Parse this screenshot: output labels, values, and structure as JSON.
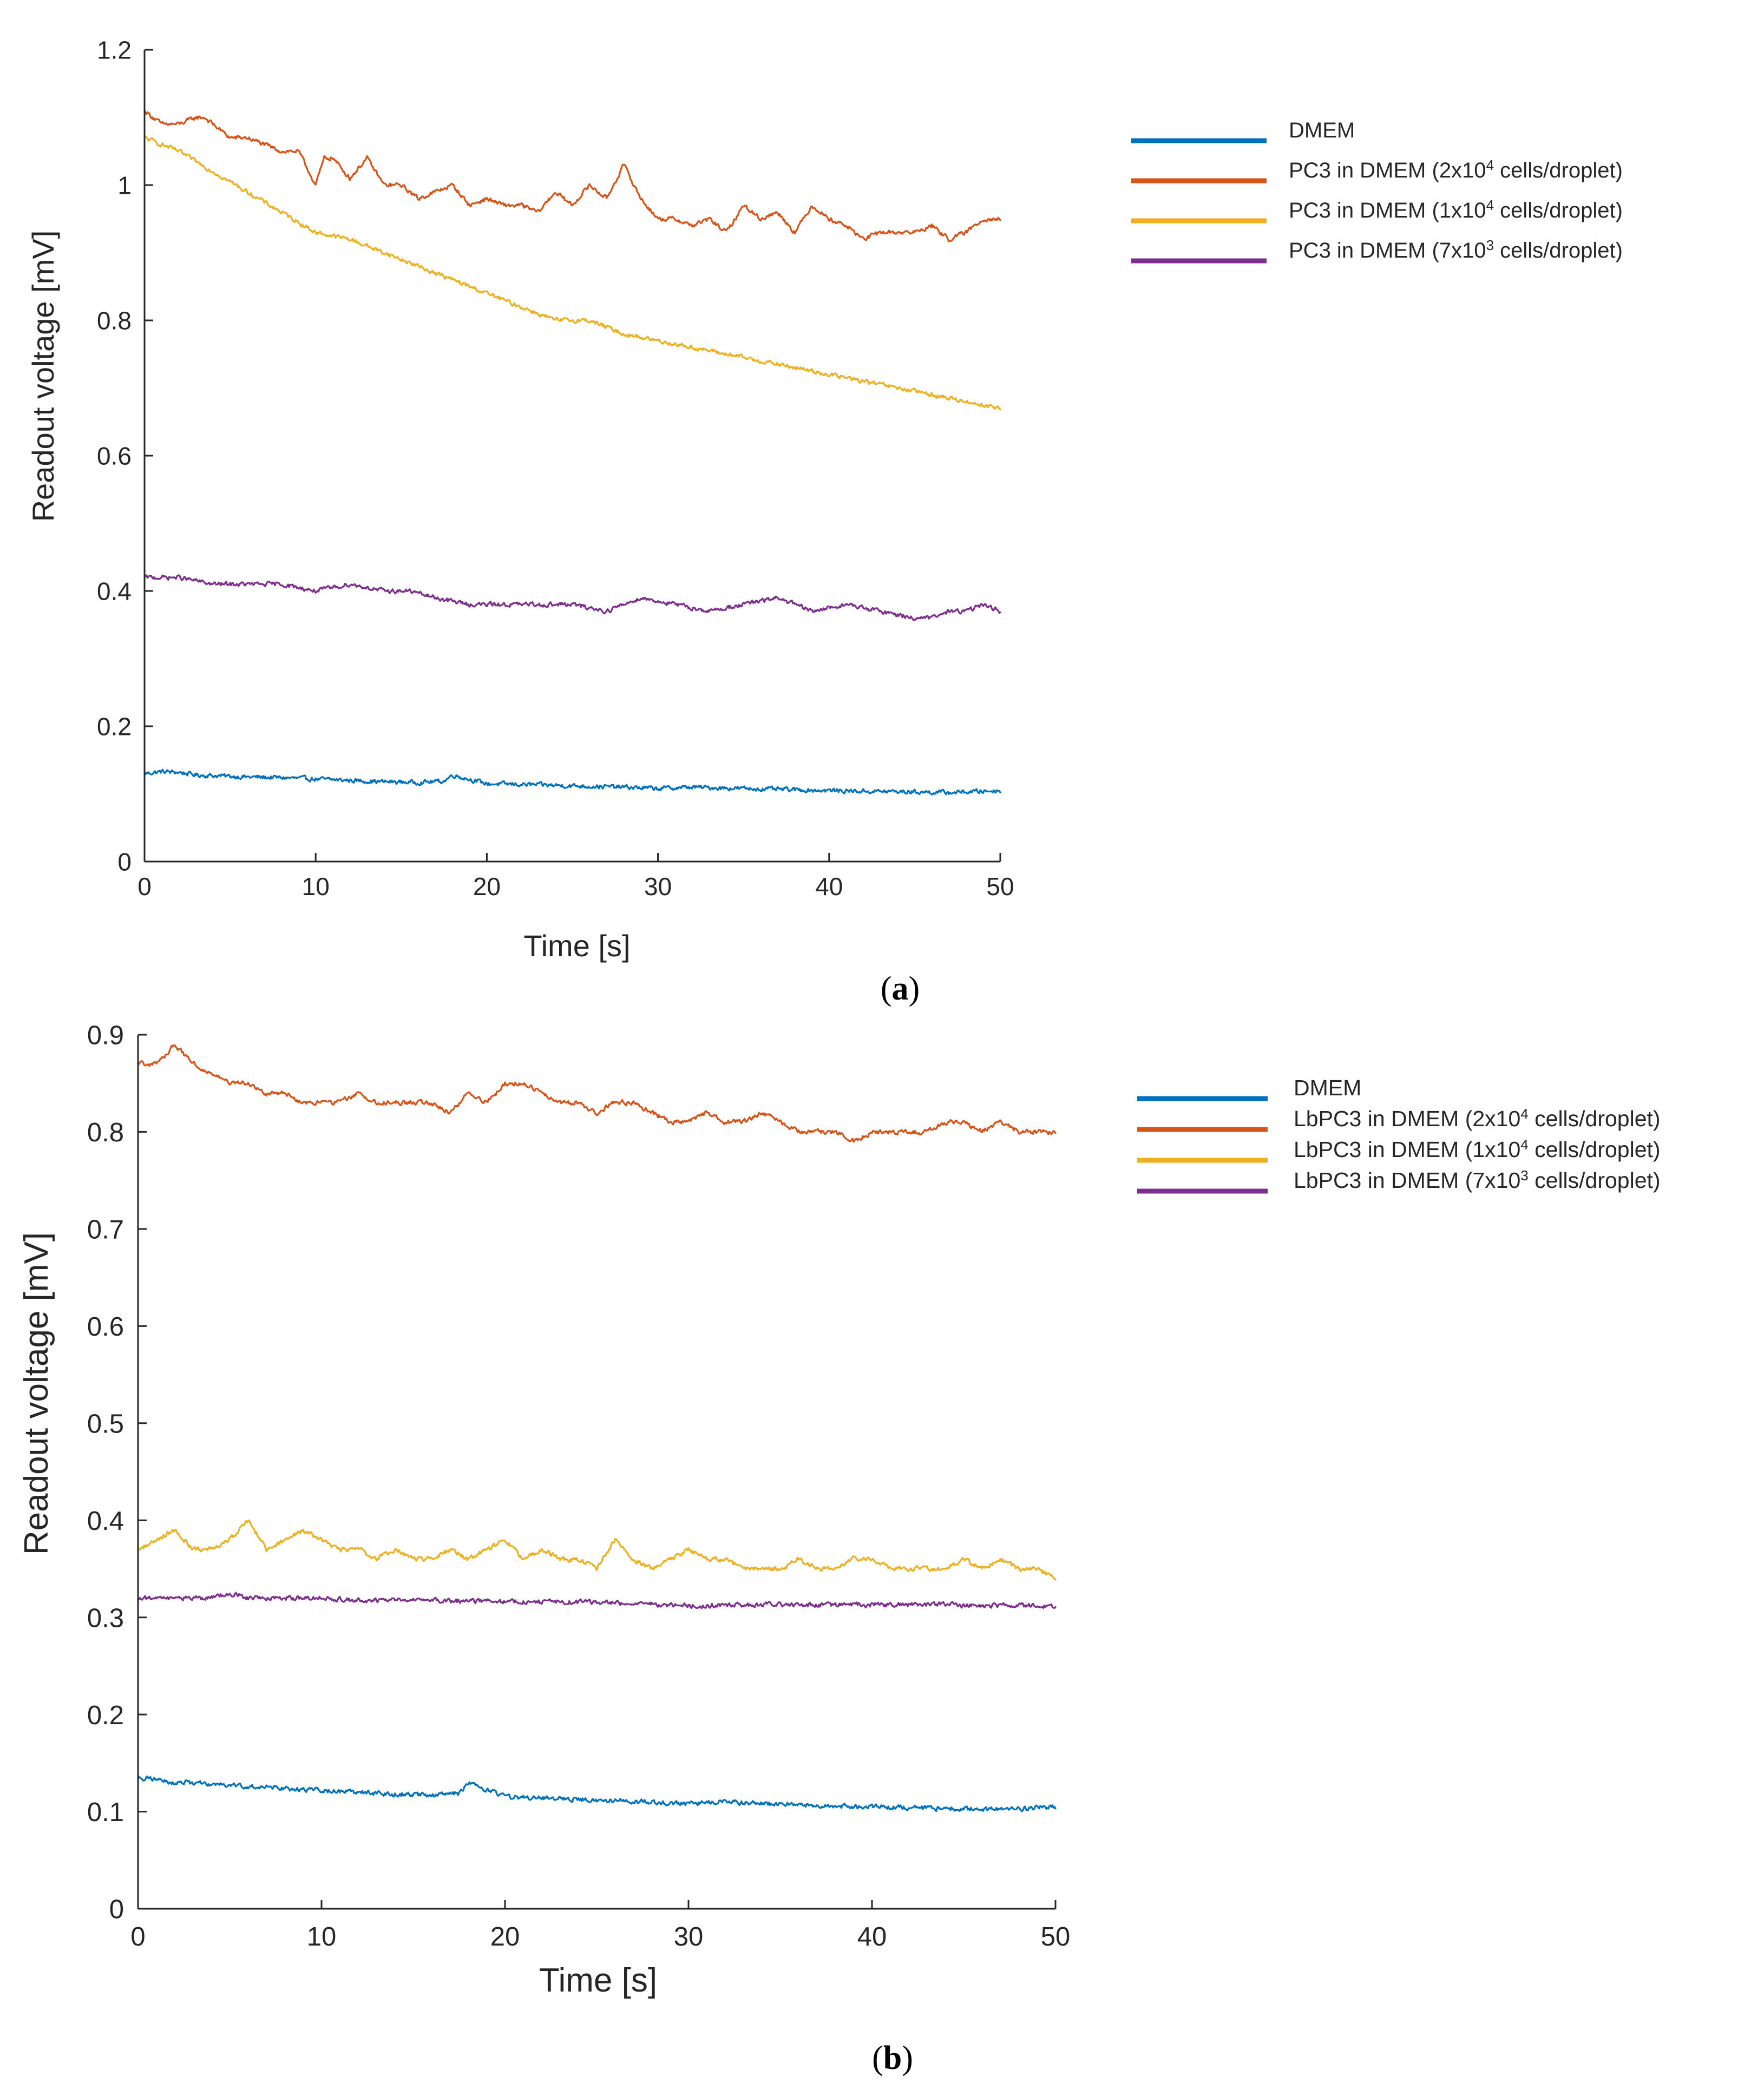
{
  "chart_data": [
    {
      "type": "line",
      "panel_label": "a",
      "title": "",
      "xlabel": "Time [s]",
      "ylabel": "Readout voltage [mV]",
      "xlim": [
        0,
        50
      ],
      "ylim": [
        0,
        1.2
      ],
      "x_ticks": [
        0,
        10,
        20,
        30,
        40,
        50
      ],
      "x_tick_labels": [
        "0",
        "10",
        "20",
        "30",
        "40",
        "50"
      ],
      "y_ticks": [
        0,
        0.2,
        0.4,
        0.6,
        0.8,
        1,
        1.2
      ],
      "y_tick_labels": [
        "0",
        "0.2",
        "0.4",
        "0.6",
        "0.8",
        "1",
        "1.2"
      ],
      "grid": false,
      "legend_position": "top-right, outside plot",
      "series": [
        {
          "name": "DMEM",
          "legend": {
            "prefix": "DMEM",
            "exp": "",
            "suffix": ""
          },
          "color": "#0072BD",
          "x": [
            0,
            1,
            2,
            3,
            4,
            5,
            6,
            8,
            10,
            12,
            14,
            16,
            17.5,
            18,
            20,
            22,
            25,
            28,
            30,
            32,
            35,
            38,
            40,
            42,
            45,
            47,
            50
          ],
          "y": [
            0.13,
            0.133,
            0.132,
            0.128,
            0.127,
            0.126,
            0.125,
            0.124,
            0.122,
            0.12,
            0.118,
            0.117,
            0.119,
            0.128,
            0.115,
            0.114,
            0.112,
            0.11,
            0.108,
            0.11,
            0.108,
            0.106,
            0.105,
            0.104,
            0.103,
            0.102,
            0.105
          ]
        },
        {
          "name": "PC3 in DMEM (2x10⁴ cells/droplet)",
          "legend": {
            "prefix": "PC3 in DMEM (2x10",
            "exp": "4",
            "suffix": " cells/droplet)"
          },
          "color": "#D95319",
          "x": [
            0,
            1,
            2,
            3,
            3.5,
            4,
            5,
            6,
            7,
            8,
            9,
            10,
            10.5,
            11,
            12,
            13,
            14,
            15,
            16,
            17,
            18,
            19,
            20,
            21,
            22,
            23,
            24,
            25,
            26,
            27,
            28,
            29,
            30,
            31,
            32,
            33,
            34,
            35,
            36,
            37,
            38,
            39,
            40,
            41,
            42,
            43,
            44,
            45,
            46,
            47,
            48,
            49,
            50
          ],
          "y": [
            1.11,
            1.09,
            1.09,
            1.1,
            1.1,
            1.09,
            1.07,
            1.07,
            1.06,
            1.05,
            1.05,
            1.0,
            1.04,
            1.04,
            1.01,
            1.04,
            1.0,
            1.0,
            0.98,
            0.99,
            1.0,
            0.97,
            0.98,
            0.97,
            0.97,
            0.96,
            0.99,
            0.97,
            1.0,
            0.98,
            1.03,
            0.98,
            0.95,
            0.95,
            0.94,
            0.95,
            0.93,
            0.97,
            0.95,
            0.96,
            0.93,
            0.97,
            0.95,
            0.94,
            0.92,
            0.93,
            0.93,
            0.93,
            0.94,
            0.92,
            0.93,
            0.95,
            0.95
          ]
        },
        {
          "name": "PC3 in DMEM (1x10⁴ cells/droplet)",
          "legend": {
            "prefix": "PC3 in DMEM (1x10",
            "exp": "4",
            "suffix": " cells/droplet)"
          },
          "color": "#EDB120",
          "x": [
            0,
            2,
            4,
            6,
            8,
            10,
            12,
            14,
            16,
            18,
            20,
            22,
            24,
            26,
            28,
            30,
            32,
            34,
            36,
            38,
            40,
            42,
            44,
            46,
            48,
            50
          ],
          "y": [
            1.07,
            1.05,
            1.02,
            0.99,
            0.96,
            0.93,
            0.92,
            0.9,
            0.88,
            0.86,
            0.84,
            0.82,
            0.8,
            0.8,
            0.78,
            0.77,
            0.76,
            0.75,
            0.74,
            0.73,
            0.72,
            0.71,
            0.7,
            0.69,
            0.68,
            0.67
          ]
        },
        {
          "name": "PC3 in DMEM (7x10³ cells/droplet)",
          "legend": {
            "prefix": "PC3 in DMEM (7x10",
            "exp": "3",
            "suffix": " cells/droplet)"
          },
          "color": "#7E2F8E",
          "x": [
            0,
            2,
            4,
            6,
            8,
            10,
            12,
            14,
            15.5,
            17,
            19,
            21,
            23,
            25,
            27,
            29,
            31,
            33,
            35,
            37,
            39,
            41,
            43,
            45,
            46,
            47,
            48,
            49,
            50
          ],
          "y": [
            0.42,
            0.42,
            0.41,
            0.41,
            0.41,
            0.4,
            0.41,
            0.4,
            0.4,
            0.39,
            0.38,
            0.38,
            0.38,
            0.38,
            0.37,
            0.39,
            0.38,
            0.37,
            0.38,
            0.39,
            0.37,
            0.38,
            0.37,
            0.36,
            0.36,
            0.37,
            0.37,
            0.38,
            0.37
          ]
        }
      ]
    },
    {
      "type": "line",
      "panel_label": "b",
      "title": "",
      "xlabel": "Time [s]",
      "ylabel": "Readout voltage [mV]",
      "xlim": [
        0,
        50
      ],
      "ylim": [
        0,
        0.9
      ],
      "x_ticks": [
        0,
        10,
        20,
        30,
        40,
        50
      ],
      "x_tick_labels": [
        "0",
        "10",
        "20",
        "30",
        "40",
        "50"
      ],
      "y_ticks": [
        0,
        0.1,
        0.2,
        0.3,
        0.4,
        0.5,
        0.6,
        0.7,
        0.8,
        0.9
      ],
      "y_tick_labels": [
        "0",
        "0.1",
        "0.2",
        "0.3",
        "0.4",
        "0.5",
        "0.6",
        "0.7",
        "0.8",
        "0.9"
      ],
      "grid": false,
      "legend_position": "top-right, outside plot",
      "series": [
        {
          "name": "DMEM",
          "legend": {
            "prefix": "DMEM",
            "exp": "",
            "suffix": ""
          },
          "color": "#0072BD",
          "x": [
            0,
            1,
            2,
            3,
            4,
            6,
            8,
            10,
            12,
            14,
            16,
            17.5,
            18,
            20,
            22,
            25,
            28,
            30,
            32,
            35,
            38,
            40,
            42,
            45,
            47,
            50
          ],
          "y": [
            0.135,
            0.133,
            0.13,
            0.13,
            0.128,
            0.126,
            0.124,
            0.122,
            0.12,
            0.118,
            0.117,
            0.119,
            0.13,
            0.115,
            0.114,
            0.112,
            0.11,
            0.108,
            0.11,
            0.108,
            0.106,
            0.105,
            0.104,
            0.103,
            0.102,
            0.105
          ]
        },
        {
          "name": "LbPC3 in DMEM (2x10⁴ cells/droplet)",
          "legend": {
            "prefix": "LbPC3 in DMEM (2x10",
            "exp": "4",
            "suffix": " cells/droplet)"
          },
          "color": "#D95319",
          "x": [
            0,
            1,
            2,
            3,
            4,
            5,
            6,
            7,
            8,
            9,
            10,
            11,
            12,
            13,
            14,
            15,
            16,
            17,
            18,
            19,
            20,
            21,
            22,
            23,
            24,
            25,
            26,
            27,
            28,
            29,
            30,
            31,
            32,
            33,
            34,
            35,
            36,
            37,
            38,
            39,
            40,
            41,
            42,
            43,
            44,
            45,
            46,
            47,
            48,
            49,
            50
          ],
          "y": [
            0.87,
            0.87,
            0.89,
            0.87,
            0.86,
            0.85,
            0.85,
            0.84,
            0.84,
            0.83,
            0.83,
            0.83,
            0.84,
            0.83,
            0.83,
            0.83,
            0.83,
            0.82,
            0.84,
            0.83,
            0.85,
            0.85,
            0.84,
            0.83,
            0.83,
            0.82,
            0.83,
            0.83,
            0.82,
            0.81,
            0.81,
            0.82,
            0.81,
            0.81,
            0.82,
            0.81,
            0.8,
            0.8,
            0.8,
            0.79,
            0.8,
            0.8,
            0.8,
            0.8,
            0.81,
            0.81,
            0.8,
            0.81,
            0.8,
            0.8,
            0.8
          ]
        },
        {
          "name": "LbPC3 in DMEM (1x10⁴ cells/droplet)",
          "legend": {
            "prefix": "LbPC3 in DMEM (1x10",
            "exp": "4",
            "suffix": "  cells/droplet)"
          },
          "color": "#EDB120",
          "x": [
            0,
            1,
            2,
            3,
            4,
            5,
            6,
            7,
            8,
            9,
            10,
            11,
            12,
            13,
            14,
            15,
            16,
            17,
            18,
            19,
            20,
            21,
            22,
            23,
            24,
            25,
            26,
            27,
            28,
            29,
            30,
            31,
            32,
            33,
            34,
            35,
            36,
            37,
            38,
            39,
            40,
            41,
            42,
            43,
            44,
            45,
            46,
            47,
            48,
            49,
            50
          ],
          "y": [
            0.37,
            0.38,
            0.39,
            0.37,
            0.37,
            0.38,
            0.4,
            0.37,
            0.38,
            0.39,
            0.38,
            0.37,
            0.37,
            0.36,
            0.37,
            0.36,
            0.36,
            0.37,
            0.36,
            0.37,
            0.38,
            0.36,
            0.37,
            0.36,
            0.36,
            0.35,
            0.38,
            0.36,
            0.35,
            0.36,
            0.37,
            0.36,
            0.36,
            0.35,
            0.35,
            0.35,
            0.36,
            0.35,
            0.35,
            0.36,
            0.36,
            0.35,
            0.35,
            0.35,
            0.35,
            0.36,
            0.35,
            0.36,
            0.35,
            0.35,
            0.34
          ]
        },
        {
          "name": "LbPC3 in DMEM (7x10³ cells/droplet)",
          "legend": {
            "prefix": "LbPC3 in DMEM (7x10",
            "exp": "3",
            "suffix": " cells/droplet)"
          },
          "color": "#7E2F8E",
          "x": [
            0,
            2,
            4,
            5,
            6,
            8,
            10,
            12,
            14,
            16,
            18,
            20,
            22,
            24,
            26,
            28,
            30,
            32,
            34,
            36,
            38,
            40,
            42,
            44,
            46,
            48,
            50
          ],
          "y": [
            0.32,
            0.32,
            0.32,
            0.325,
            0.32,
            0.32,
            0.32,
            0.318,
            0.318,
            0.317,
            0.317,
            0.316,
            0.316,
            0.316,
            0.315,
            0.314,
            0.312,
            0.313,
            0.313,
            0.313,
            0.313,
            0.313,
            0.313,
            0.313,
            0.312,
            0.312,
            0.312
          ]
        }
      ]
    }
  ]
}
